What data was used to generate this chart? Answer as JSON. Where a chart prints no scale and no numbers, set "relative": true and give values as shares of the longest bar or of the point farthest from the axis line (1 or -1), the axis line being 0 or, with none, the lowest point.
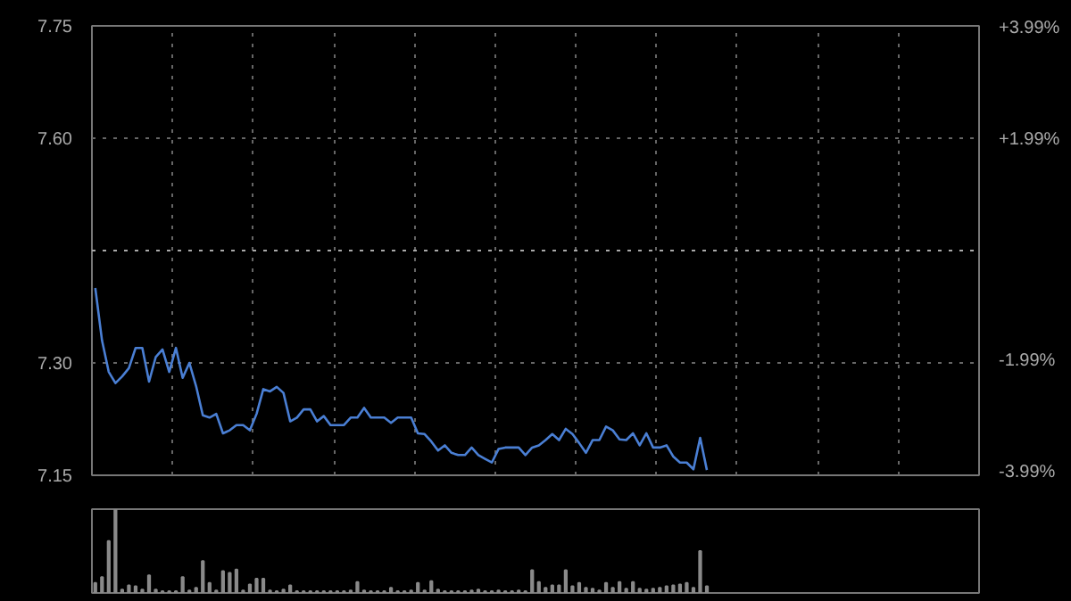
{
  "chart_data": [
    {
      "type": "line",
      "categories": [
        null,
        null,
        null,
        null,
        null,
        null,
        null,
        null,
        null,
        null,
        null,
        null,
        null,
        null,
        null,
        null,
        null,
        null,
        null,
        null,
        null,
        null,
        null,
        null,
        null,
        null,
        null,
        null,
        null,
        null,
        null,
        null,
        null,
        null,
        null,
        null,
        null,
        null,
        null,
        null,
        null,
        null,
        null,
        null,
        null,
        null,
        null,
        null,
        null,
        null,
        null,
        null,
        null,
        null,
        null,
        null,
        null,
        null,
        null,
        null,
        null,
        null,
        null,
        null,
        null,
        null,
        null,
        null,
        null,
        null,
        null,
        null,
        null,
        null,
        null,
        null,
        null,
        null,
        null,
        null,
        null,
        null,
        null,
        null,
        null,
        null,
        null,
        null,
        null,
        null,
        null,
        null,
        null,
        null,
        null,
        null,
        null,
        null,
        null,
        null,
        null,
        null,
        null,
        null,
        null,
        null,
        null,
        null,
        null,
        null,
        null,
        null,
        null,
        null,
        null,
        null,
        null,
        null,
        null,
        null,
        null,
        null,
        null,
        null,
        null,
        null,
        null,
        null,
        null,
        null,
        null,
        null
      ],
      "ylim": [
        7.15,
        7.75
      ],
      "yticks": [
        {
          "value": 7.15,
          "label": "7.15"
        },
        {
          "value": 7.3,
          "label": "7.30"
        },
        {
          "value": 7.6,
          "label": "7.60"
        },
        {
          "value": 7.75,
          "label": "7.75"
        }
      ],
      "y2lim": [
        -4.03,
        4.03
      ],
      "y2ticks": [
        {
          "value": -3.99,
          "label": "-3.99%"
        },
        {
          "value": -1.99,
          "label": "-1.99%"
        },
        {
          "value": 1.99,
          "label": "+1.99%"
        },
        {
          "value": 3.99,
          "label": "+3.99%"
        }
      ],
      "grid": true,
      "marker": "none",
      "line_style": "solid",
      "ref_lines": [
        {
          "axis": "y",
          "value": 7.45,
          "line_style": "dotted"
        }
      ],
      "series": [
        {
          "color": "#4a7fd4",
          "values": [
            7.4,
            7.33,
            7.288,
            7.273,
            7.282,
            7.293,
            7.32,
            7.32,
            7.275,
            7.308,
            7.318,
            7.288,
            7.32,
            7.28,
            7.3,
            7.269,
            7.23,
            7.227,
            7.232,
            7.206,
            7.21,
            7.217,
            7.217,
            7.21,
            7.232,
            7.265,
            7.262,
            7.268,
            7.26,
            7.222,
            7.227,
            7.238,
            7.238,
            7.222,
            7.229,
            7.217,
            7.217,
            7.217,
            7.227,
            7.227,
            7.24,
            7.227,
            7.227,
            7.227,
            7.22,
            7.227,
            7.227,
            7.227,
            7.206,
            7.205,
            7.195,
            7.183,
            7.19,
            7.18,
            7.177,
            7.177,
            7.187,
            7.177,
            7.172,
            7.167,
            7.185,
            7.187,
            7.187,
            7.187,
            7.177,
            7.187,
            7.19,
            7.197,
            7.205,
            7.197,
            7.212,
            7.205,
            7.193,
            7.18,
            7.197,
            7.197,
            7.215,
            7.21,
            7.198,
            7.197,
            7.206,
            7.19,
            7.206,
            7.187,
            7.187,
            7.19,
            7.175,
            7.167,
            7.167,
            7.158,
            7.2,
            7.157,
            null,
            null,
            null,
            null,
            null,
            null,
            null,
            null,
            null,
            null,
            null,
            null,
            null,
            null,
            null,
            null,
            null,
            null,
            null,
            null,
            null,
            null,
            null,
            null,
            null,
            null,
            null,
            null,
            null,
            null,
            null,
            null,
            null,
            null,
            null,
            null,
            null,
            null,
            null,
            null
          ]
        }
      ]
    },
    {
      "type": "bar",
      "relative": true,
      "categories": [
        null,
        null,
        null,
        null,
        null,
        null,
        null,
        null,
        null,
        null,
        null,
        null,
        null,
        null,
        null,
        null,
        null,
        null,
        null,
        null,
        null,
        null,
        null,
        null,
        null,
        null,
        null,
        null,
        null,
        null,
        null,
        null,
        null,
        null,
        null,
        null,
        null,
        null,
        null,
        null,
        null,
        null,
        null,
        null,
        null,
        null,
        null,
        null,
        null,
        null,
        null,
        null,
        null,
        null,
        null,
        null,
        null,
        null,
        null,
        null,
        null,
        null,
        null,
        null,
        null,
        null,
        null,
        null,
        null,
        null,
        null,
        null,
        null,
        null,
        null,
        null,
        null,
        null,
        null,
        null,
        null,
        null,
        null,
        null,
        null,
        null,
        null,
        null,
        null,
        null,
        null,
        null,
        null,
        null,
        null,
        null,
        null,
        null,
        null,
        null,
        null,
        null,
        null,
        null,
        null,
        null,
        null,
        null,
        null,
        null,
        null,
        null,
        null,
        null,
        null,
        null,
        null,
        null,
        null,
        null,
        null,
        null,
        null,
        null,
        null,
        null,
        null,
        null,
        null,
        null,
        null,
        null
      ],
      "series": [
        {
          "color": "#8a8a8a",
          "values": [
            0.12,
            0.19,
            0.62,
            1.0,
            0.04,
            0.09,
            0.08,
            0.04,
            0.21,
            0.04,
            0.02,
            0.02,
            0.02,
            0.19,
            0.03,
            0.06,
            0.38,
            0.12,
            0.03,
            0.26,
            0.24,
            0.28,
            0.03,
            0.1,
            0.17,
            0.17,
            0.03,
            0.02,
            0.04,
            0.09,
            0.02,
            0.02,
            0.02,
            0.02,
            0.02,
            0.02,
            0.02,
            0.02,
            0.03,
            0.13,
            0.03,
            0.02,
            0.02,
            0.02,
            0.06,
            0.02,
            0.02,
            0.03,
            0.12,
            0.03,
            0.14,
            0.04,
            0.02,
            0.02,
            0.02,
            0.02,
            0.03,
            0.04,
            0.02,
            0.02,
            0.03,
            0.02,
            0.02,
            0.03,
            0.02,
            0.27,
            0.13,
            0.06,
            0.09,
            0.09,
            0.27,
            0.08,
            0.12,
            0.06,
            0.05,
            0.03,
            0.12,
            0.06,
            0.13,
            0.05,
            0.13,
            0.05,
            0.04,
            0.05,
            0.06,
            0.08,
            0.09,
            0.1,
            0.12,
            0.06,
            0.5,
            0.08,
            null,
            null,
            null,
            null,
            null,
            null,
            null,
            null,
            null,
            null,
            null,
            null,
            null,
            null,
            null,
            null,
            null,
            null,
            null,
            null,
            null,
            null,
            null,
            null,
            null,
            null,
            null,
            null,
            null,
            null,
            null,
            null,
            null,
            null,
            null,
            null,
            null,
            null,
            null,
            null
          ]
        }
      ]
    }
  ]
}
